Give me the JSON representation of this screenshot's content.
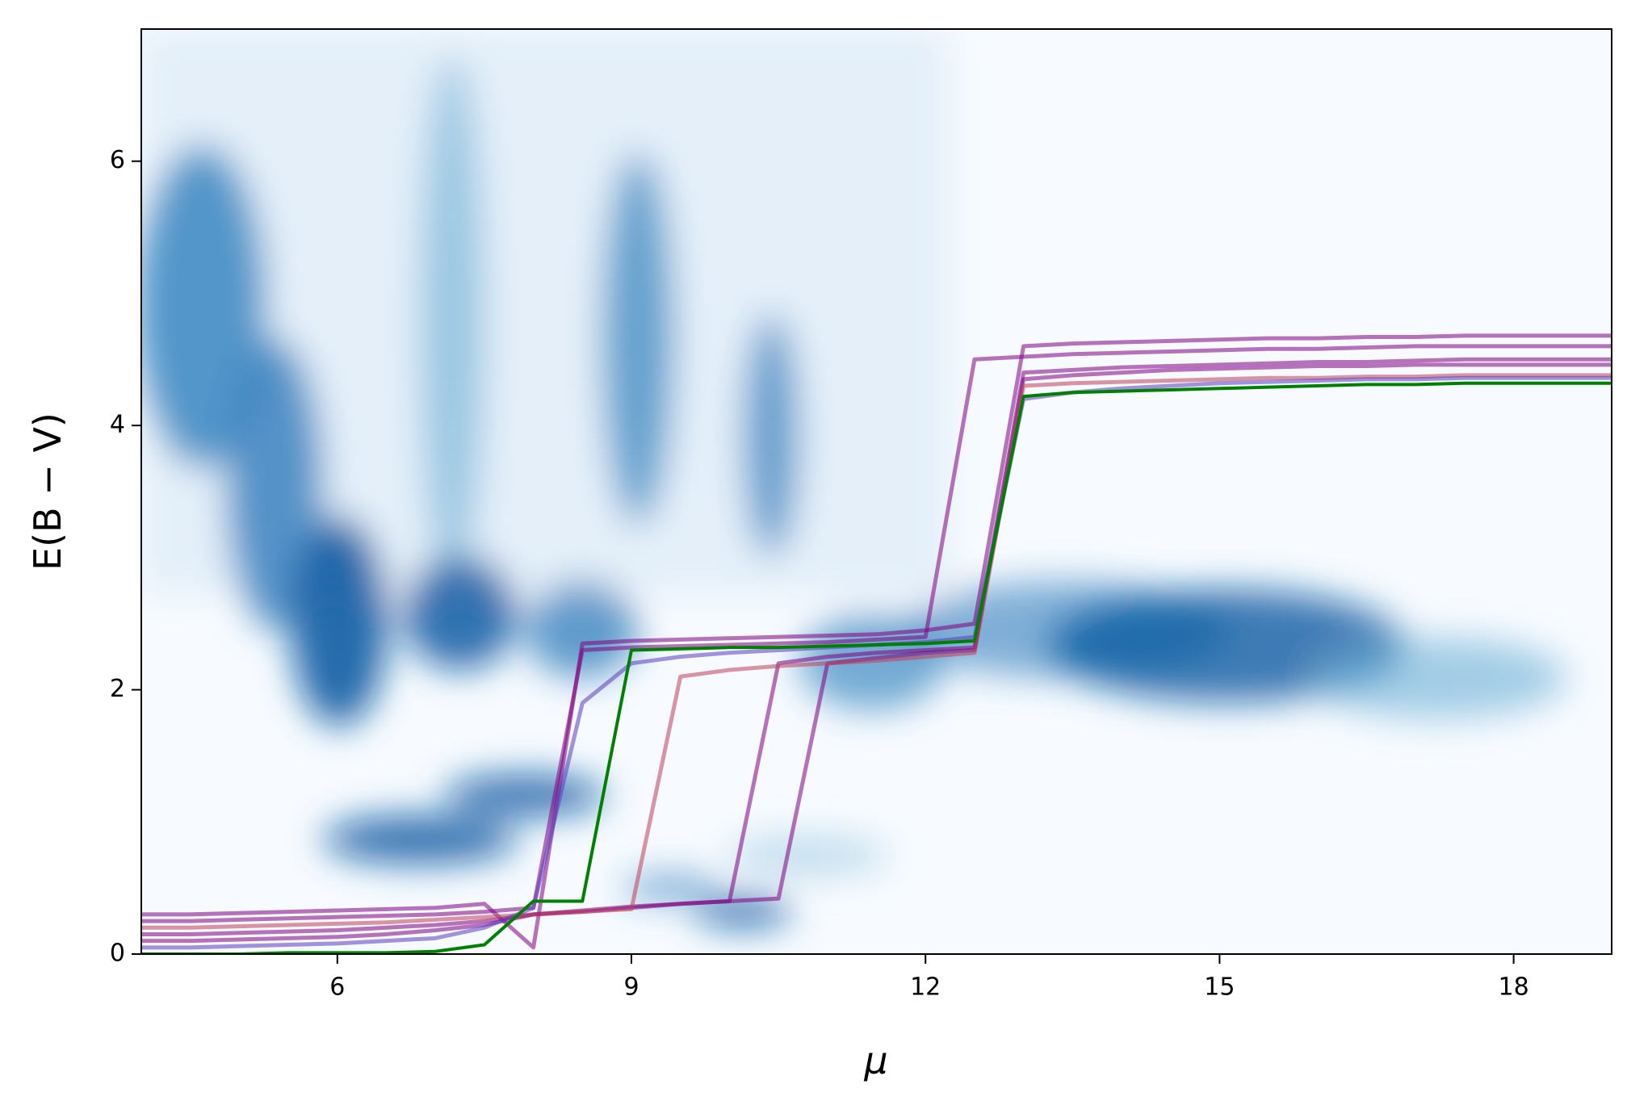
{
  "chart_data": {
    "type": "line",
    "xlabel": "μ",
    "ylabel": "E(B − V)",
    "xlim": [
      4,
      19
    ],
    "ylim": [
      0,
      7
    ],
    "xticks": [
      6,
      9,
      12,
      15,
      18
    ],
    "yticks": [
      0,
      2,
      4,
      6
    ],
    "x": [
      4,
      4.5,
      5,
      5.5,
      6,
      6.5,
      7,
      7.5,
      8,
      8.5,
      9,
      9.5,
      10,
      10.5,
      11,
      11.5,
      12,
      12.5,
      13,
      13.5,
      14,
      14.5,
      15,
      15.5,
      16,
      16.5,
      17,
      17.5,
      18,
      18.5,
      19
    ],
    "series": [
      {
        "color": "#800080",
        "values": [
          0.25,
          0.25,
          0.26,
          0.27,
          0.28,
          0.29,
          0.3,
          0.32,
          0.35,
          2.3,
          2.32,
          2.33,
          2.34,
          2.35,
          2.36,
          2.38,
          2.4,
          4.5,
          4.52,
          4.54,
          4.55,
          4.56,
          4.57,
          4.58,
          4.58,
          4.59,
          4.6,
          4.6,
          4.6,
          4.6,
          4.6
        ]
      },
      {
        "color": "#800080",
        "values": [
          0.15,
          0.15,
          0.16,
          0.17,
          0.18,
          0.2,
          0.22,
          0.25,
          0.3,
          0.32,
          0.35,
          0.38,
          0.4,
          2.2,
          2.25,
          2.28,
          2.3,
          2.32,
          4.4,
          4.42,
          4.44,
          4.45,
          4.46,
          4.47,
          4.48,
          4.48,
          4.49,
          4.5,
          4.5,
          4.5,
          4.5
        ]
      },
      {
        "color": "#800080",
        "values": [
          0.1,
          0.1,
          0.11,
          0.12,
          0.13,
          0.15,
          0.18,
          0.22,
          0.3,
          0.33,
          0.36,
          0.38,
          0.4,
          0.42,
          2.2,
          2.24,
          2.28,
          2.3,
          4.35,
          4.38,
          4.4,
          4.42,
          4.43,
          4.44,
          4.45,
          4.45,
          4.46,
          4.46,
          4.46,
          4.46,
          4.46
        ]
      },
      {
        "color": "#800080",
        "values": [
          0.3,
          0.3,
          0.31,
          0.32,
          0.33,
          0.34,
          0.35,
          0.38,
          0.05,
          2.35,
          2.37,
          2.38,
          2.39,
          2.4,
          2.41,
          2.42,
          2.45,
          2.5,
          4.6,
          4.62,
          4.63,
          4.64,
          4.65,
          4.66,
          4.66,
          4.67,
          4.67,
          4.68,
          4.68,
          4.68,
          4.68
        ]
      },
      {
        "color": "#c0405a",
        "values": [
          0.2,
          0.2,
          0.21,
          0.22,
          0.23,
          0.24,
          0.26,
          0.28,
          0.3,
          0.32,
          0.34,
          2.1,
          2.15,
          2.18,
          2.2,
          2.22,
          2.25,
          2.28,
          4.3,
          4.32,
          4.33,
          4.34,
          4.35,
          4.36,
          4.36,
          4.37,
          4.37,
          4.38,
          4.38,
          4.38,
          4.38
        ]
      },
      {
        "color": "#5a3cc0",
        "values": [
          0.05,
          0.05,
          0.06,
          0.07,
          0.08,
          0.1,
          0.12,
          0.2,
          0.35,
          1.9,
          2.2,
          2.25,
          2.28,
          2.3,
          2.32,
          2.34,
          2.36,
          2.4,
          4.2,
          4.25,
          4.28,
          4.3,
          4.32,
          4.33,
          4.34,
          4.35,
          4.35,
          4.36,
          4.36,
          4.36,
          4.36
        ]
      },
      {
        "color": "#008000",
        "values": [
          0.0,
          0.0,
          0.0,
          0.01,
          0.01,
          0.01,
          0.02,
          0.07,
          0.4,
          0.4,
          2.3,
          2.31,
          2.32,
          2.32,
          2.33,
          2.34,
          2.35,
          2.37,
          4.22,
          4.25,
          4.26,
          4.27,
          4.28,
          4.29,
          4.3,
          4.31,
          4.31,
          4.32,
          4.32,
          4.32,
          4.32
        ]
      }
    ]
  }
}
